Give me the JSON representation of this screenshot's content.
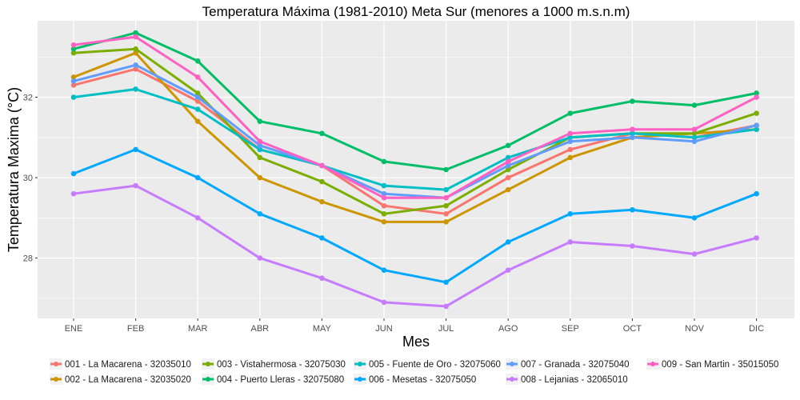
{
  "chart_data": {
    "type": "line",
    "title": "Temperatura Máxima (1981-2010) Meta Sur (menores a 1000 m.s.n.m)",
    "xlabel": "Mes",
    "ylabel": "Temperatura Maxima (°C)",
    "categories": [
      "ENE",
      "FEB",
      "MAR",
      "ABR",
      "MAY",
      "JUN",
      "JUL",
      "AGO",
      "SEP",
      "OCT",
      "NOV",
      "DIC"
    ],
    "ylim": [
      26.5,
      33.9
    ],
    "yticks": [
      "28",
      "30",
      "32"
    ],
    "grid": true,
    "legend_position": "bottom",
    "series": [
      {
        "name": "001 - La Macarena - 32035010",
        "color": "#F8766D",
        "values": [
          32.3,
          32.7,
          31.9,
          30.7,
          30.3,
          29.3,
          29.1,
          30.0,
          30.7,
          31.1,
          31.0,
          31.3
        ]
      },
      {
        "name": "002 - La Macarena - 32035020",
        "color": "#CD9600",
        "values": [
          32.5,
          33.1,
          31.4,
          30.0,
          29.4,
          28.9,
          28.9,
          29.7,
          30.5,
          31.0,
          31.1,
          31.2
        ]
      },
      {
        "name": "003 - Vistahermosa - 32075030",
        "color": "#7CAE00",
        "values": [
          33.1,
          33.2,
          32.1,
          30.5,
          29.9,
          29.1,
          29.3,
          30.2,
          31.0,
          31.1,
          31.1,
          31.6
        ]
      },
      {
        "name": "004 - Puerto Lleras - 32075080",
        "color": "#00BE67",
        "values": [
          33.2,
          33.6,
          32.9,
          31.4,
          31.1,
          30.4,
          30.2,
          30.8,
          31.6,
          31.9,
          31.8,
          32.1
        ]
      },
      {
        "name": "005 - Fuente de Oro - 32075060",
        "color": "#00BFC4",
        "values": [
          32.0,
          32.2,
          31.7,
          30.7,
          30.3,
          29.8,
          29.7,
          30.5,
          31.0,
          31.1,
          31.0,
          31.2
        ]
      },
      {
        "name": "006 - Mesetas - 32075050",
        "color": "#00A9FF",
        "values": [
          30.1,
          30.7,
          30.0,
          29.1,
          28.5,
          27.7,
          27.4,
          28.4,
          29.1,
          29.2,
          29.0,
          29.6
        ]
      },
      {
        "name": "007 - Granada - 32075040",
        "color": "#619CFF",
        "values": [
          32.4,
          32.8,
          32.0,
          30.8,
          30.3,
          29.6,
          29.5,
          30.3,
          30.9,
          31.0,
          30.9,
          31.3
        ]
      },
      {
        "name": "008 - Lejanias - 32065010",
        "color": "#C77CFF",
        "values": [
          29.6,
          29.8,
          29.0,
          28.0,
          27.5,
          26.9,
          26.8,
          27.7,
          28.4,
          28.3,
          28.1,
          28.5
        ]
      },
      {
        "name": "009 - San Martin - 35015050",
        "color": "#FF61C3",
        "values": [
          33.3,
          33.5,
          32.5,
          30.9,
          30.3,
          29.5,
          29.5,
          30.4,
          31.1,
          31.2,
          31.2,
          32.0
        ]
      }
    ]
  }
}
